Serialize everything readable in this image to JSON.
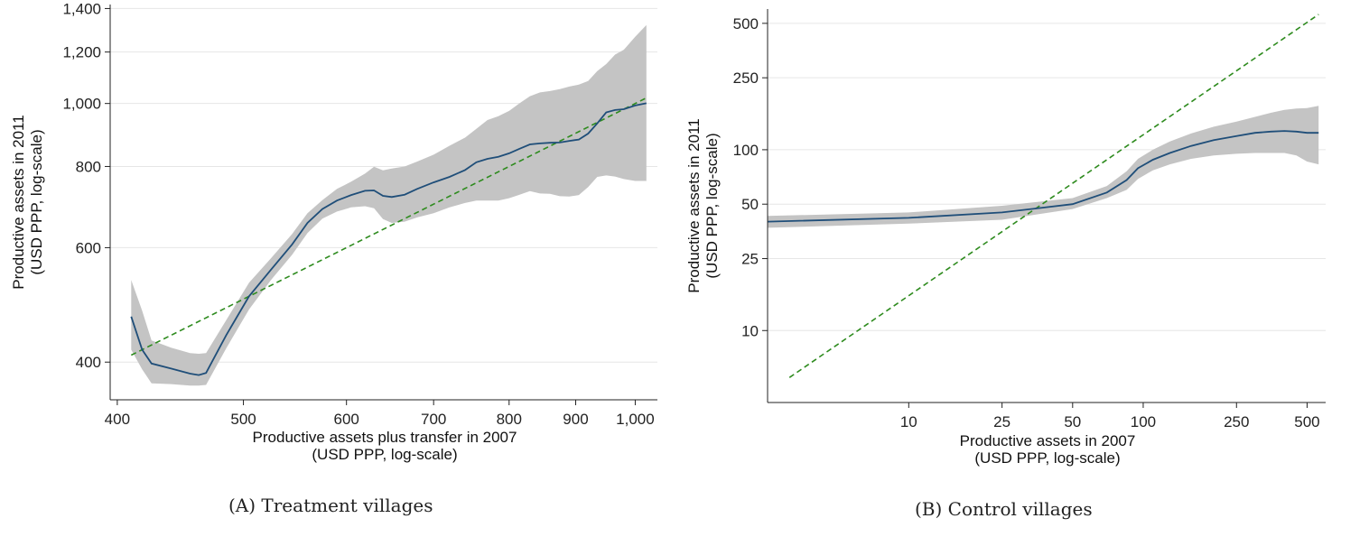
{
  "chart_data": [
    {
      "id": "a",
      "type": "line",
      "caption": "(A) Treatment villages",
      "xlabel": "Productive assets plus transfer in 2007",
      "xlabel2": "(USD PPP, log-scale)",
      "ylabel": "Productive assets in 2011",
      "ylabel2": "(USD PPP, log-scale)",
      "x_scale": "log",
      "y_scale": "log",
      "xlim": [
        395,
        1040
      ],
      "ylim": [
        350,
        1420
      ],
      "x_ticks": [
        {
          "v": 400,
          "label": "400"
        },
        {
          "v": 500,
          "label": "500"
        },
        {
          "v": 600,
          "label": "600"
        },
        {
          "v": 700,
          "label": "700"
        },
        {
          "v": 800,
          "label": "800"
        },
        {
          "v": 900,
          "label": "900"
        },
        {
          "v": 1000,
          "label": "1,000"
        }
      ],
      "y_ticks": [
        {
          "v": 400,
          "label": "400"
        },
        {
          "v": 600,
          "label": "600"
        },
        {
          "v": 800,
          "label": "800"
        },
        {
          "v": 1000,
          "label": "1,000"
        },
        {
          "v": 1200,
          "label": "1,200"
        },
        {
          "v": 1400,
          "label": "1,400"
        }
      ],
      "grid": "horizontal",
      "colors": {
        "line": "#1f4e79",
        "band": "#c4c4c4",
        "diagonal": "#2e8b1e"
      },
      "series": [
        {
          "kind": "fit",
          "x": [
            410,
            418,
            425,
            440,
            455,
            462,
            468,
            485,
            505,
            525,
            545,
            560,
            575,
            590,
            605,
            620,
            630,
            640,
            650,
            665,
            680,
            700,
            720,
            740,
            755,
            770,
            785,
            800,
            815,
            830,
            845,
            860,
            875,
            890,
            905,
            920,
            935,
            950,
            965,
            980,
            1000,
            1020
          ],
          "y": [
            470,
            418,
            398,
            391,
            384,
            382,
            385,
            440,
            505,
            555,
            607,
            655,
            688,
            709,
            723,
            734,
            735,
            721,
            718,
            724,
            739,
            756,
            771,
            790,
            812,
            822,
            828,
            838,
            852,
            865,
            868,
            870,
            871,
            876,
            880,
            899,
            932,
            969,
            977,
            980,
            993,
            1001
          ]
        },
        {
          "kind": "ci",
          "x": [
            410,
            418,
            425,
            440,
            455,
            462,
            468,
            485,
            505,
            525,
            545,
            560,
            575,
            590,
            605,
            620,
            630,
            640,
            650,
            665,
            680,
            700,
            720,
            740,
            755,
            770,
            785,
            800,
            815,
            830,
            845,
            860,
            875,
            890,
            905,
            920,
            935,
            950,
            965,
            980,
            1000,
            1020
          ],
          "lower": [
            418,
            390,
            371,
            370,
            368,
            368,
            369,
            420,
            482,
            535,
            585,
            632,
            665,
            682,
            692,
            695,
            690,
            664,
            655,
            658,
            668,
            678,
            692,
            703,
            709,
            709,
            709,
            715,
            724,
            733,
            727,
            726,
            720,
            719,
            723,
            744,
            771,
            775,
            772,
            765,
            760,
            760
          ],
          "upper": [
            535,
            480,
            432,
            421,
            413,
            412,
            413,
            464,
            530,
            578,
            630,
            678,
            710,
            739,
            758,
            780,
            799,
            789,
            794,
            800,
            814,
            834,
            861,
            886,
            914,
            943,
            956,
            974,
            1001,
            1026,
            1040,
            1045,
            1052,
            1062,
            1069,
            1083,
            1122,
            1150,
            1189,
            1210,
            1267,
            1320
          ]
        },
        {
          "kind": "diagonal",
          "x": [
            410,
            1020
          ],
          "y": [
            410,
            1020
          ]
        }
      ]
    },
    {
      "id": "b",
      "type": "line",
      "caption": "(B) Control villages",
      "xlabel": "Productive assets in 2007",
      "xlabel2": "(USD PPP, log-scale)",
      "ylabel": "Productive assets in 2011",
      "ylabel2": "(USD PPP, log-scale)",
      "x_scale": "log",
      "y_scale": "log",
      "xlim": [
        2.5,
        600
      ],
      "ylim": [
        4,
        600
      ],
      "x_ticks": [
        {
          "v": 10,
          "label": "10"
        },
        {
          "v": 25,
          "label": "25"
        },
        {
          "v": 50,
          "label": "50"
        },
        {
          "v": 100,
          "label": "100"
        },
        {
          "v": 250,
          "label": "250"
        },
        {
          "v": 500,
          "label": "500"
        }
      ],
      "y_ticks": [
        {
          "v": 10,
          "label": "10"
        },
        {
          "v": 25,
          "label": "25"
        },
        {
          "v": 50,
          "label": "50"
        },
        {
          "v": 100,
          "label": "100"
        },
        {
          "v": 250,
          "label": "250"
        },
        {
          "v": 500,
          "label": "500"
        }
      ],
      "grid": "horizontal",
      "colors": {
        "line": "#1f4e79",
        "band": "#c4c4c4",
        "diagonal": "#2e8b1e"
      },
      "series": [
        {
          "kind": "fit",
          "x": [
            2.5,
            10,
            25,
            50,
            70,
            85,
            95,
            110,
            130,
            160,
            200,
            250,
            300,
            350,
            400,
            450,
            500,
            560
          ],
          "y": [
            40,
            42,
            45,
            50,
            58,
            68,
            79,
            88,
            96,
            105,
            113,
            119,
            124,
            126,
            127,
            126,
            124,
            124
          ]
        },
        {
          "kind": "ci",
          "x": [
            2.5,
            10,
            25,
            50,
            70,
            85,
            95,
            110,
            130,
            160,
            200,
            250,
            300,
            350,
            400,
            450,
            500,
            560
          ],
          "lower": [
            37,
            39,
            41,
            47,
            54,
            60,
            69,
            77,
            83,
            89,
            93,
            95,
            96,
            96,
            96,
            93,
            86,
            83
          ],
          "upper": [
            43,
            45,
            49,
            54,
            63,
            76,
            89,
            100,
            111,
            123,
            134,
            143,
            152,
            160,
            166,
            169,
            170,
            175
          ]
        },
        {
          "kind": "diagonal",
          "x": [
            3.1,
            560
          ],
          "y": [
            5.5,
            560
          ]
        }
      ]
    }
  ]
}
